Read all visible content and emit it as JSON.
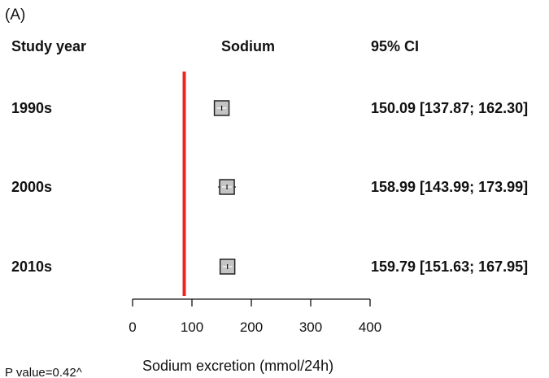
{
  "chart_data": {
    "type": "forest",
    "panel_label": "(A)",
    "column_headers": {
      "group": "Study year",
      "measure": "Sodium",
      "ci": "95% CI"
    },
    "rows": [
      {
        "label": "1990s",
        "estimate": 150.09,
        "ci_low": 137.87,
        "ci_high": 162.3,
        "ci_text": "150.09 [137.87; 162.30]"
      },
      {
        "label": "2000s",
        "estimate": 158.99,
        "ci_low": 143.99,
        "ci_high": 173.99,
        "ci_text": "158.99 [143.99; 173.99]"
      },
      {
        "label": "2010s",
        "estimate": 159.79,
        "ci_low": 151.63,
        "ci_high": 167.95,
        "ci_text": "159.79 [151.63; 167.95]"
      }
    ],
    "reference_line": {
      "value": 87,
      "color": "#e8281e"
    },
    "x_axis": {
      "label": "Sodium excretion (mmol/24h)",
      "ticks": [
        0,
        100,
        200,
        300,
        400
      ],
      "tick_labels": [
        "0",
        "100",
        "200",
        "300",
        "400"
      ],
      "range": [
        0,
        400
      ]
    },
    "footnote": "P value=0.42^",
    "marker_fill": "#c4c4c4",
    "marker_stroke": "#222222"
  }
}
